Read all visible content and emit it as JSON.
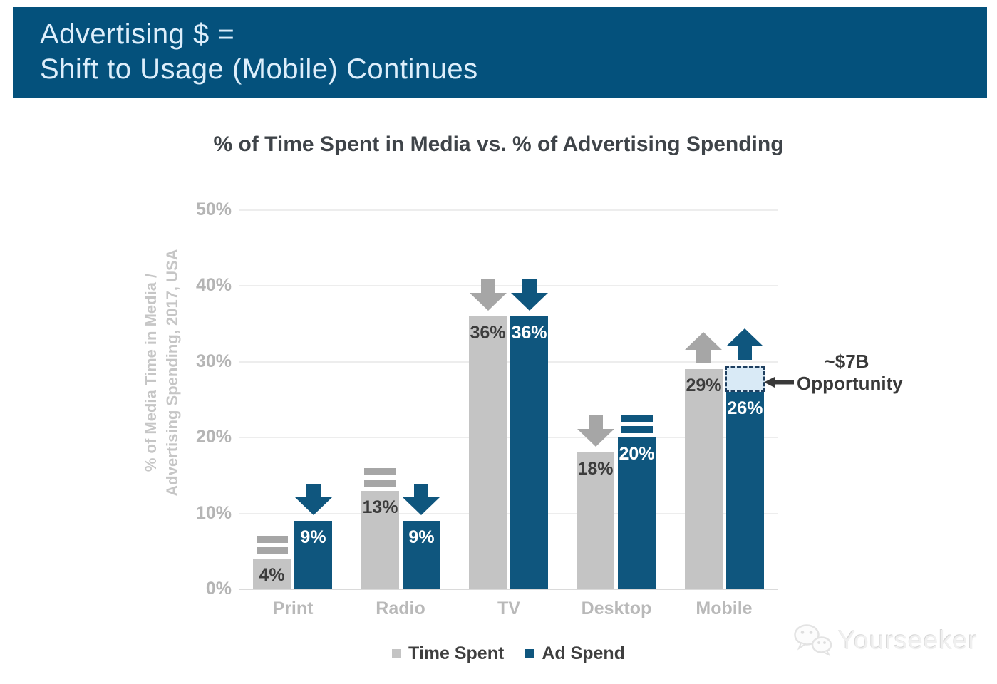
{
  "banner": {
    "line1": "Advertising $ =",
    "line2": "Shift to Usage (Mobile) Continues",
    "bg_color": "#04517c",
    "text_color": "#ddeefb"
  },
  "chart_data": {
    "type": "bar",
    "title": "% of Time Spent in Media vs. % of Advertising Spending",
    "ylabel": "% of Media Time in Media / Advertising Spending, 2017, USA",
    "ylabel_lines": [
      "% of Media Time in Media /",
      "Advertising Spending, 2017, USA"
    ],
    "ylim": [
      0,
      50
    ],
    "ytick_values": [
      0,
      10,
      20,
      30,
      40,
      50
    ],
    "ytick_labels": [
      "0%",
      "10%",
      "20%",
      "30%",
      "40%",
      "50%"
    ],
    "grid": true,
    "legend_position": "bottom",
    "categories": [
      "Print",
      "Radio",
      "TV",
      "Desktop",
      "Mobile"
    ],
    "series": [
      {
        "name": "Time Spent",
        "color": "#c4c4c4",
        "marker_color": "#a6a6a6",
        "label_color": "#3c3c3c",
        "values": [
          4,
          13,
          36,
          18,
          29
        ],
        "value_labels": [
          "4%",
          "13%",
          "36%",
          "18%",
          "29%"
        ],
        "trends": [
          "flat",
          "flat",
          "down",
          "down",
          "up"
        ]
      },
      {
        "name": "Ad Spend",
        "color": "#0f567e",
        "marker_color": "#0f567e",
        "label_color": "#ffffff",
        "values": [
          9,
          9,
          36,
          20,
          26
        ],
        "value_labels": [
          "9%",
          "9%",
          "36%",
          "20%",
          "26%"
        ],
        "trends": [
          "down",
          "down",
          "down",
          "flat",
          "up"
        ]
      }
    ],
    "opportunity": {
      "category": "Mobile",
      "series": "Ad Spend",
      "gap_from": 26,
      "gap_to": 29.5,
      "label_line1": "~$7B",
      "label_line2": "Opportunity",
      "box_fill": "#d9eaf6",
      "box_border": "#1e3f60"
    }
  },
  "watermark": {
    "text": "Yourseeker"
  }
}
